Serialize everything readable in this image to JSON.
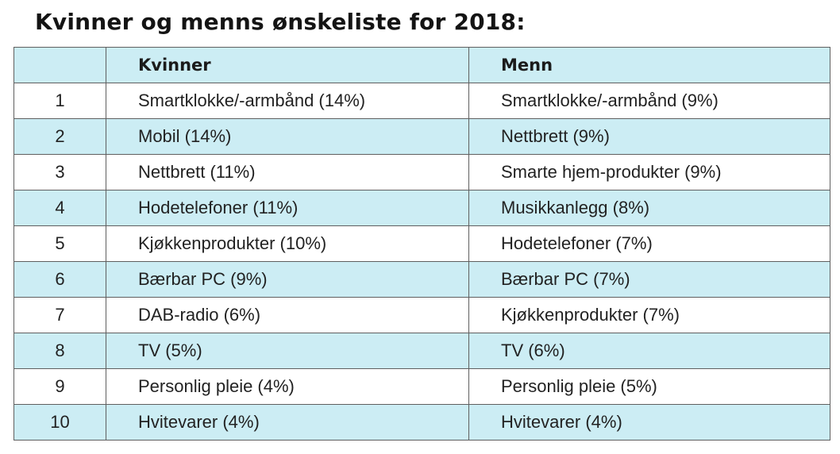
{
  "title": "Kvinner og menns ønskeliste for 2018:",
  "table": {
    "headers": [
      "",
      "Kvinner",
      "Menn"
    ],
    "rows": [
      {
        "rank": "1",
        "women": "Smartklokke/-armbånd (14%)",
        "men": "Smartklokke/-armbånd (9%)"
      },
      {
        "rank": "2",
        "women": "Mobil (14%)",
        "men": "Nettbrett (9%)"
      },
      {
        "rank": "3",
        "women": "Nettbrett (11%)",
        "men": "Smarte hjem-produkter (9%)"
      },
      {
        "rank": "4",
        "women": "Hodetelefoner (11%)",
        "men": "Musikkanlegg (8%)"
      },
      {
        "rank": "5",
        "women": "Kjøkkenprodukter (10%)",
        "men": "Hodetelefoner (7%)"
      },
      {
        "rank": "6",
        "women": "Bærbar PC (9%)",
        "men": "Bærbar PC (7%)"
      },
      {
        "rank": "7",
        "women": "DAB-radio (6%)",
        "men": "Kjøkkenprodukter (7%)"
      },
      {
        "rank": "8",
        "women": "TV (5%)",
        "men": "TV (6%)"
      },
      {
        "rank": "9",
        "women": "Personlig pleie (4%)",
        "men": "Personlig pleie (5%)"
      },
      {
        "rank": "10",
        "women": "Hvitevarer (4%)",
        "men": "Hvitevarer (4%)"
      }
    ]
  },
  "colors": {
    "shaded_row": "#ccedf4",
    "plain_row": "#ffffff",
    "border": "#5f5f5f",
    "text": "#222222"
  }
}
